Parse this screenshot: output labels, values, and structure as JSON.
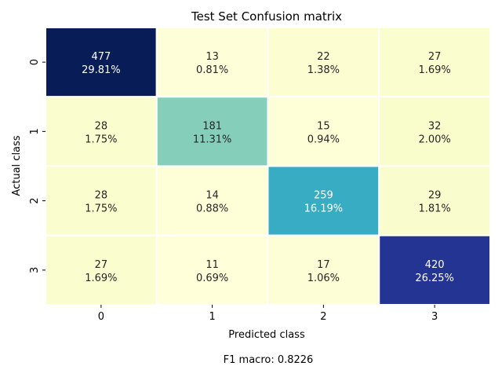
{
  "chart_data": {
    "type": "heatmap",
    "title": "Test Set Confusion matrix",
    "xlabel": "Predicted class",
    "ylabel": "Actual class",
    "x_categories": [
      "0",
      "1",
      "2",
      "3"
    ],
    "y_categories": [
      "0",
      "1",
      "2",
      "3"
    ],
    "values": [
      [
        477,
        13,
        22,
        27
      ],
      [
        28,
        181,
        15,
        32
      ],
      [
        28,
        14,
        259,
        29
      ],
      [
        27,
        11,
        17,
        420
      ]
    ],
    "percentages": [
      [
        "29.81%",
        "0.81%",
        "1.38%",
        "1.69%"
      ],
      [
        "1.75%",
        "11.31%",
        "0.94%",
        "2.00%"
      ],
      [
        "1.75%",
        "0.88%",
        "16.19%",
        "1.81%"
      ],
      [
        "1.69%",
        "0.69%",
        "1.06%",
        "26.25%"
      ]
    ],
    "colormap": "YlGnBu",
    "grid": false,
    "cell_border_color": "#ffffff"
  },
  "footer": {
    "text": "F1 macro: 0.8226"
  }
}
